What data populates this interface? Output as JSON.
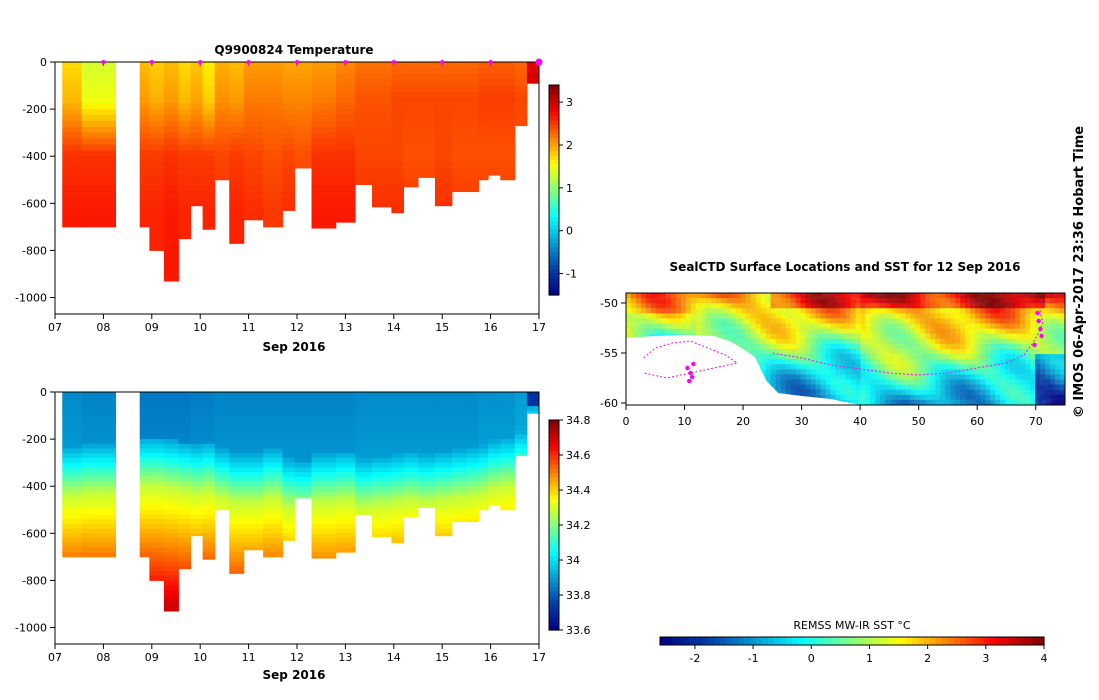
{
  "credit": "© IMOS 06-Apr-2017 23:36 Hobart Time",
  "chart_data": [
    {
      "id": "temperature",
      "type": "heatmap",
      "title": "Q9900824  Temperature",
      "xlabel": "Sep 2016",
      "x_ticks": [
        "07",
        "08",
        "09",
        "10",
        "11",
        "12",
        "13",
        "14",
        "15",
        "16",
        "17"
      ],
      "xlim": [
        7,
        17
      ],
      "y_ticks": [
        "0",
        "-200",
        "-400",
        "-600",
        "-800",
        "-1000"
      ],
      "ylim": [
        -1070,
        0
      ],
      "colorbar": {
        "min": -1.5,
        "max": 3.4,
        "ticks": [
          "-1",
          "0",
          "1",
          "2",
          "3"
        ]
      },
      "profile_markers_day": [
        8.0,
        9.0,
        10.0,
        11.0,
        12.0,
        13.0,
        14.0,
        15.0,
        16.0,
        17.0
      ],
      "profiles": [
        {
          "x0": 7.15,
          "x1": 7.55,
          "depth": 700,
          "surf": 1.75,
          "deep": 2.55
        },
        {
          "x0": 7.55,
          "x1": 8.25,
          "depth": 700,
          "surf": 1.35,
          "deep": 2.55
        },
        {
          "x0": 8.75,
          "x1": 8.95,
          "depth": 700,
          "surf": 1.9,
          "deep": 2.5
        },
        {
          "x0": 8.95,
          "x1": 9.25,
          "depth": 800,
          "surf": 1.8,
          "deep": 2.5
        },
        {
          "x0": 9.25,
          "x1": 9.55,
          "depth": 930,
          "surf": 1.9,
          "deep": 2.55
        },
        {
          "x0": 9.55,
          "x1": 9.8,
          "depth": 750,
          "surf": 1.75,
          "deep": 2.5
        },
        {
          "x0": 9.8,
          "x1": 10.05,
          "depth": 610,
          "surf": 1.85,
          "deep": 2.5
        },
        {
          "x0": 10.05,
          "x1": 10.3,
          "depth": 710,
          "surf": 1.65,
          "deep": 2.5
        },
        {
          "x0": 10.3,
          "x1": 10.6,
          "depth": 500,
          "surf": 1.95,
          "deep": 2.45
        },
        {
          "x0": 10.6,
          "x1": 10.9,
          "depth": 770,
          "surf": 1.9,
          "deep": 2.5
        },
        {
          "x0": 10.9,
          "x1": 11.3,
          "depth": 670,
          "surf": 2.05,
          "deep": 2.45
        },
        {
          "x0": 11.3,
          "x1": 11.7,
          "depth": 700,
          "surf": 2.05,
          "deep": 2.4
        },
        {
          "x0": 11.7,
          "x1": 11.95,
          "depth": 630,
          "surf": 2.0,
          "deep": 2.45
        },
        {
          "x0": 11.95,
          "x1": 12.3,
          "depth": 450,
          "surf": 2.0,
          "deep": 2.4
        },
        {
          "x0": 12.3,
          "x1": 12.8,
          "depth": 705,
          "surf": 2.05,
          "deep": 2.55
        },
        {
          "x0": 12.8,
          "x1": 13.2,
          "depth": 680,
          "surf": 2.15,
          "deep": 2.55
        },
        {
          "x0": 13.2,
          "x1": 13.55,
          "depth": 520,
          "surf": 2.25,
          "deep": 2.45
        },
        {
          "x0": 13.55,
          "x1": 13.95,
          "depth": 615,
          "surf": 2.25,
          "deep": 2.45
        },
        {
          "x0": 13.95,
          "x1": 14.2,
          "depth": 640,
          "surf": 2.3,
          "deep": 2.45
        },
        {
          "x0": 14.2,
          "x1": 14.5,
          "depth": 530,
          "surf": 2.3,
          "deep": 2.4
        },
        {
          "x0": 14.5,
          "x1": 14.85,
          "depth": 490,
          "surf": 2.3,
          "deep": 2.4
        },
        {
          "x0": 14.85,
          "x1": 15.2,
          "depth": 610,
          "surf": 2.3,
          "deep": 2.45
        },
        {
          "x0": 15.2,
          "x1": 15.5,
          "depth": 550,
          "surf": 2.3,
          "deep": 2.4
        },
        {
          "x0": 15.5,
          "x1": 15.75,
          "depth": 550,
          "surf": 2.3,
          "deep": 2.4
        },
        {
          "x0": 15.75,
          "x1": 15.95,
          "depth": 500,
          "surf": 2.35,
          "deep": 2.4
        },
        {
          "x0": 15.95,
          "x1": 16.2,
          "depth": 480,
          "surf": 2.35,
          "deep": 2.4
        },
        {
          "x0": 16.2,
          "x1": 16.5,
          "depth": 500,
          "surf": 2.35,
          "deep": 2.4
        },
        {
          "x0": 16.5,
          "x1": 16.75,
          "depth": 270,
          "surf": 2.3,
          "deep": 2.4
        },
        {
          "x0": 16.75,
          "x1": 17.0,
          "depth": 90,
          "surf": 2.9,
          "deep": 2.9
        }
      ]
    },
    {
      "id": "salinity",
      "type": "heatmap",
      "title": "",
      "xlabel": "Sep 2016",
      "x_ticks": [
        "07",
        "08",
        "09",
        "10",
        "11",
        "12",
        "13",
        "14",
        "15",
        "16",
        "17"
      ],
      "xlim": [
        7,
        17
      ],
      "y_ticks": [
        "0",
        "-200",
        "-400",
        "-600",
        "-800",
        "-1000"
      ],
      "ylim": [
        -1070,
        0
      ],
      "colorbar": {
        "min": 33.6,
        "max": 34.8,
        "ticks": [
          "33.6",
          "33.8",
          "34",
          "34.2",
          "34.4",
          "34.6",
          "34.8"
        ]
      },
      "profiles": [
        {
          "x0": 7.15,
          "x1": 7.55,
          "depth": 700,
          "mixed": 270,
          "surf": 33.87
        },
        {
          "x0": 7.55,
          "x1": 8.25,
          "depth": 700,
          "mixed": 260,
          "surf": 33.86
        },
        {
          "x0": 8.75,
          "x1": 8.95,
          "depth": 700,
          "mixed": 230,
          "surf": 33.84
        },
        {
          "x0": 8.95,
          "x1": 9.25,
          "depth": 800,
          "mixed": 230,
          "surf": 33.84
        },
        {
          "x0": 9.25,
          "x1": 9.55,
          "depth": 930,
          "mixed": 240,
          "surf": 33.84
        },
        {
          "x0": 9.55,
          "x1": 9.8,
          "depth": 750,
          "mixed": 250,
          "surf": 33.84
        },
        {
          "x0": 9.8,
          "x1": 10.05,
          "depth": 610,
          "mixed": 260,
          "surf": 33.85
        },
        {
          "x0": 10.05,
          "x1": 10.3,
          "depth": 710,
          "mixed": 250,
          "surf": 33.85
        },
        {
          "x0": 10.3,
          "x1": 10.6,
          "depth": 500,
          "mixed": 280,
          "surf": 33.86
        },
        {
          "x0": 10.6,
          "x1": 10.9,
          "depth": 770,
          "mixed": 300,
          "surf": 33.86
        },
        {
          "x0": 10.9,
          "x1": 11.3,
          "depth": 670,
          "mixed": 300,
          "surf": 33.86
        },
        {
          "x0": 11.3,
          "x1": 11.7,
          "depth": 700,
          "mixed": 280,
          "surf": 33.86
        },
        {
          "x0": 11.7,
          "x1": 11.95,
          "depth": 630,
          "mixed": 320,
          "surf": 33.86
        },
        {
          "x0": 11.95,
          "x1": 12.3,
          "depth": 450,
          "mixed": 330,
          "surf": 33.86
        },
        {
          "x0": 12.3,
          "x1": 12.8,
          "depth": 705,
          "mixed": 300,
          "surf": 33.86
        },
        {
          "x0": 12.8,
          "x1": 13.2,
          "depth": 680,
          "mixed": 290,
          "surf": 33.86
        },
        {
          "x0": 13.2,
          "x1": 13.55,
          "depth": 520,
          "mixed": 320,
          "surf": 33.87
        },
        {
          "x0": 13.55,
          "x1": 13.95,
          "depth": 615,
          "mixed": 310,
          "surf": 33.87
        },
        {
          "x0": 13.95,
          "x1": 14.2,
          "depth": 640,
          "mixed": 300,
          "surf": 33.87
        },
        {
          "x0": 14.2,
          "x1": 14.5,
          "depth": 530,
          "mixed": 290,
          "surf": 33.87
        },
        {
          "x0": 14.5,
          "x1": 14.85,
          "depth": 490,
          "mixed": 300,
          "surf": 33.87
        },
        {
          "x0": 14.85,
          "x1": 15.2,
          "depth": 610,
          "mixed": 290,
          "surf": 33.87
        },
        {
          "x0": 15.2,
          "x1": 15.5,
          "depth": 550,
          "mixed": 280,
          "surf": 33.87
        },
        {
          "x0": 15.5,
          "x1": 15.75,
          "depth": 550,
          "mixed": 270,
          "surf": 33.87
        },
        {
          "x0": 15.75,
          "x1": 15.95,
          "depth": 500,
          "mixed": 260,
          "surf": 33.88
        },
        {
          "x0": 15.95,
          "x1": 16.2,
          "depth": 480,
          "mixed": 240,
          "surf": 33.88
        },
        {
          "x0": 16.2,
          "x1": 16.5,
          "depth": 500,
          "mixed": 230,
          "surf": 33.88
        },
        {
          "x0": 16.5,
          "x1": 16.75,
          "depth": 270,
          "mixed": 200,
          "surf": 33.9
        },
        {
          "x0": 16.75,
          "x1": 17.0,
          "depth": 90,
          "mixed": 90,
          "surf": 33.72
        }
      ]
    },
    {
      "id": "sst_map",
      "type": "heatmap",
      "title": "SealCTD Surface Locations and SST for 12 Sep 2016",
      "x_ticks": [
        "0",
        "10",
        "20",
        "30",
        "40",
        "50",
        "60",
        "70"
      ],
      "xlim": [
        0,
        75
      ],
      "y_ticks": [
        "-50",
        "-55",
        "-60"
      ],
      "ylim": [
        -60.2,
        -49
      ],
      "land_mask": [
        [
          0,
          -53.5
        ],
        [
          5,
          -53.3
        ],
        [
          10,
          -53.2
        ],
        [
          15,
          -53.3
        ],
        [
          18,
          -53.9
        ],
        [
          20,
          -54.6
        ],
        [
          22,
          -55.4
        ],
        [
          24,
          -57.8
        ],
        [
          26,
          -59.0
        ],
        [
          30,
          -59.3
        ],
        [
          35,
          -59.6
        ],
        [
          40,
          -60.2
        ],
        [
          0,
          -60.2
        ]
      ],
      "seal_track_lon_lat": [
        [
          71,
          -49.6
        ],
        [
          70.6,
          -50.2
        ],
        [
          70.8,
          -51.0
        ],
        [
          71.2,
          -52.0
        ],
        [
          70.5,
          -53.0
        ],
        [
          69.5,
          -54.0
        ],
        [
          68,
          -55.2
        ],
        [
          65,
          -56.0
        ],
        [
          60,
          -56.5
        ],
        [
          55,
          -57.0
        ],
        [
          50,
          -57.2
        ],
        [
          45,
          -57.0
        ],
        [
          40,
          -56.6
        ],
        [
          35,
          -56.2
        ],
        [
          30,
          -55.5
        ],
        [
          25,
          -55.0
        ]
      ],
      "seal_track_b_lon_lat": [
        [
          3,
          -55.5
        ],
        [
          5,
          -54.5
        ],
        [
          8,
          -54.0
        ],
        [
          11,
          -53.8
        ],
        [
          14,
          -54.5
        ],
        [
          17,
          -55.2
        ],
        [
          19,
          -56.0
        ],
        [
          15,
          -56.5
        ],
        [
          11,
          -57.0
        ],
        [
          7,
          -57.5
        ],
        [
          3,
          -57.0
        ]
      ],
      "seal_locations_lon_lat": [
        [
          70.3,
          -51.0
        ],
        [
          70.5,
          -51.8
        ],
        [
          70.8,
          -52.6
        ],
        [
          71.0,
          -53.3
        ],
        [
          69.8,
          -54.2
        ],
        [
          10.5,
          -56.5
        ],
        [
          11.0,
          -57.0
        ],
        [
          11.3,
          -57.4
        ],
        [
          10.8,
          -57.8
        ],
        [
          11.5,
          -56.1
        ]
      ],
      "colorbar": {
        "label": "REMSS MW-IR SST °C",
        "min": -2.6,
        "max": 4.0,
        "ticks": [
          "-2",
          "-1",
          "0",
          "1",
          "2",
          "3",
          "4"
        ]
      }
    }
  ]
}
